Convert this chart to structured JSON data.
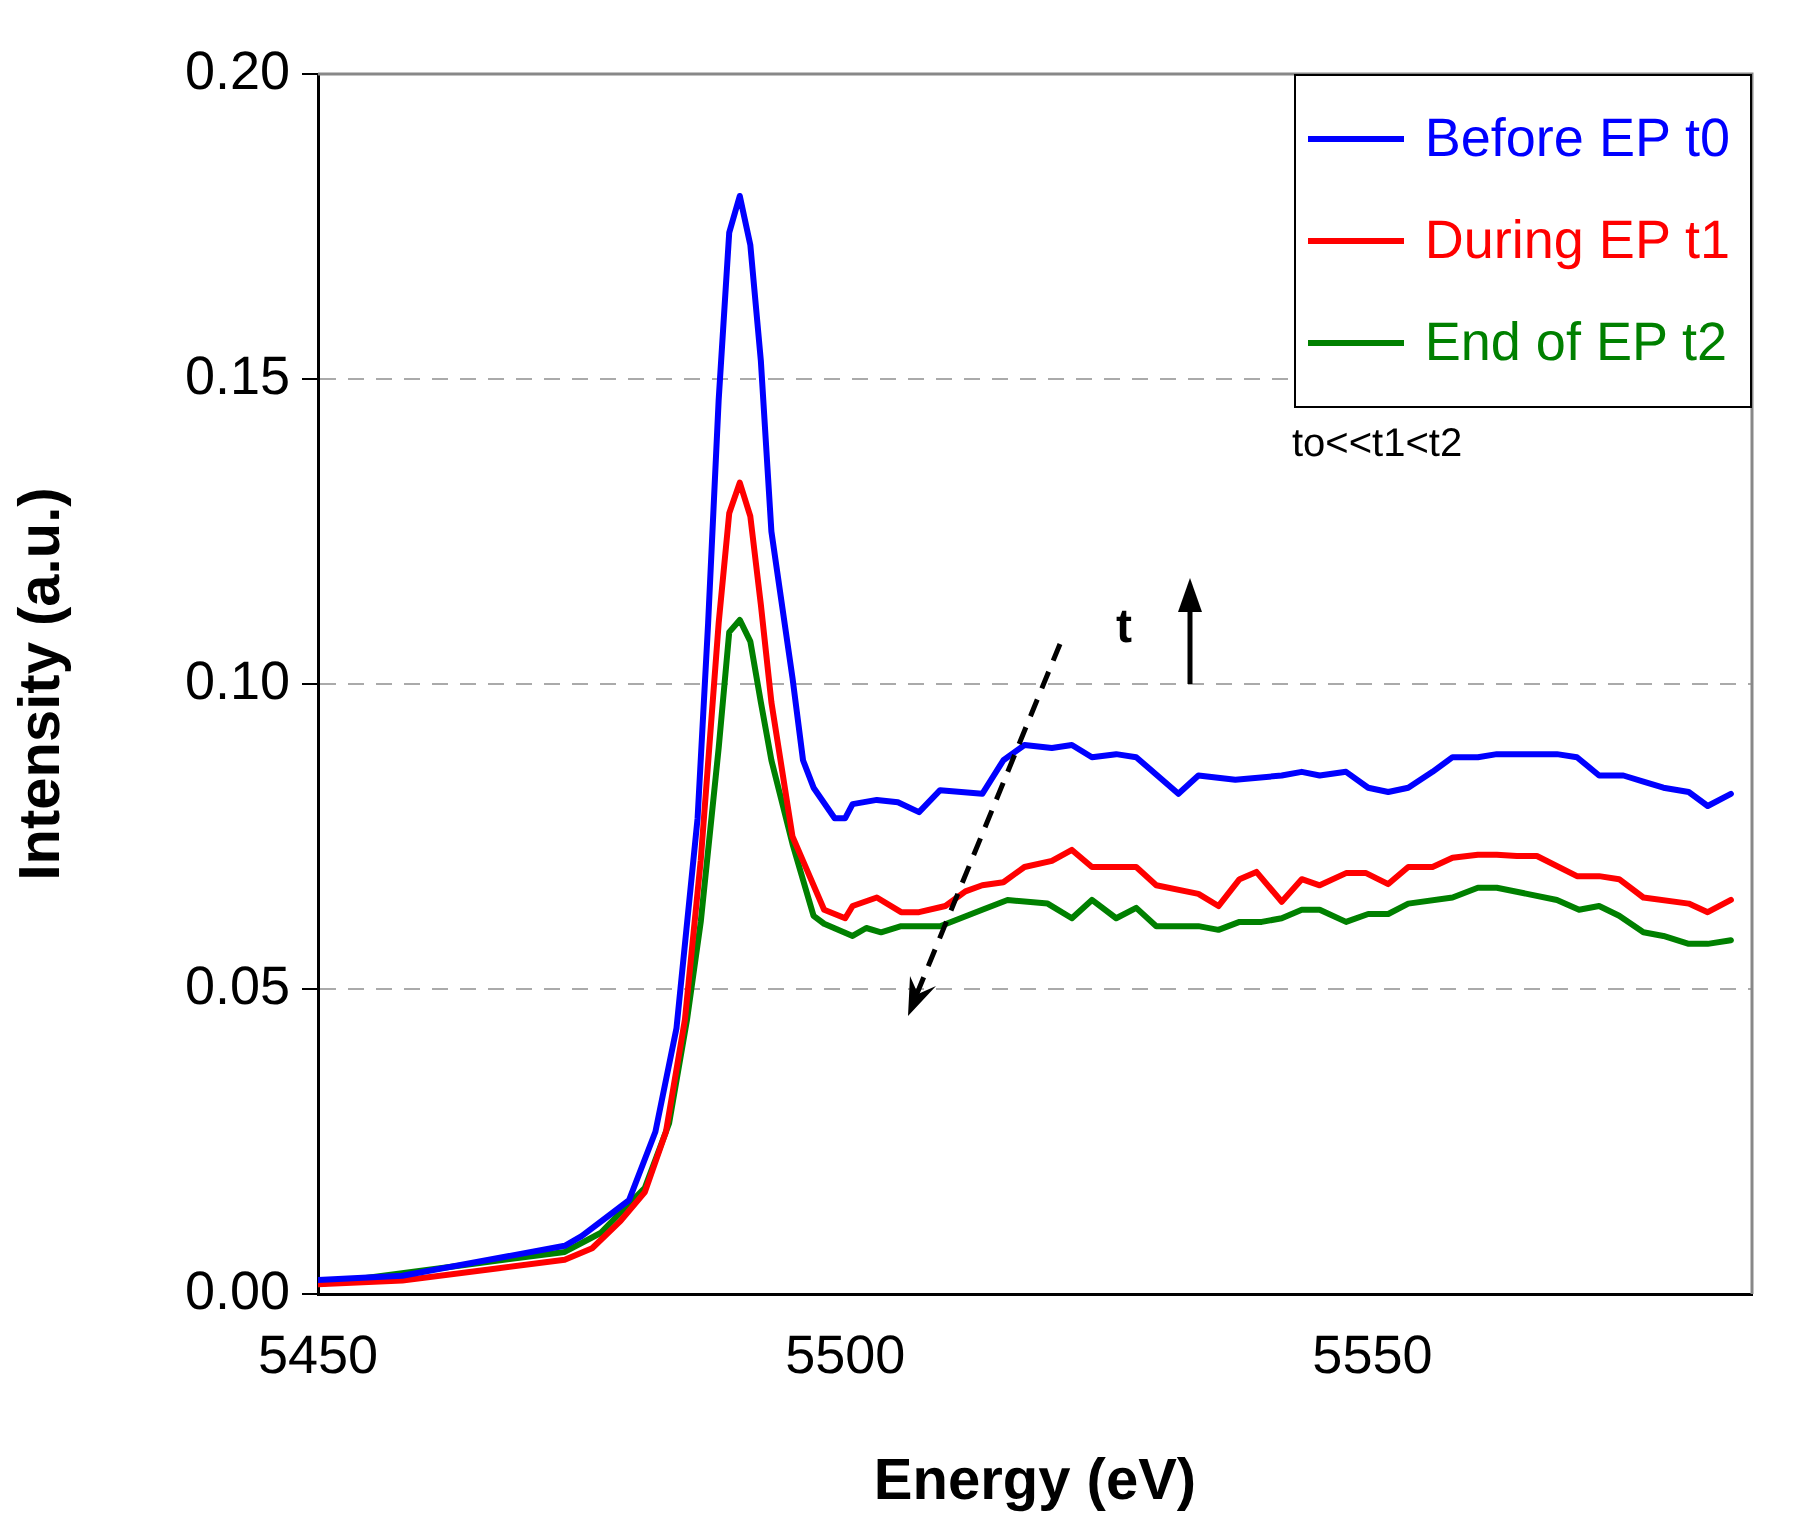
{
  "chart_data": {
    "type": "line",
    "xlabel": "Energy (eV)",
    "ylabel": "Intensity (a.u.)",
    "xlim": [
      5450,
      5586
    ],
    "xticks": [
      5450,
      5500,
      5550
    ],
    "ylim": [
      0,
      0.2
    ],
    "yticks": [
      {
        "value": 0,
        "label": "0.00"
      },
      {
        "value": 0.05,
        "label": "0.05"
      },
      {
        "value": 0.1,
        "label": "0.10"
      },
      {
        "value": 0.15,
        "label": "0.15"
      },
      {
        "value": 0.2,
        "label": "0.20"
      }
    ],
    "grid": "y",
    "legend": "top right",
    "marker": "none",
    "line_style": "solid",
    "annotations": [
      "t",
      "to<<t1<t2"
    ],
    "series": [
      {
        "name": "Before EP t0",
        "color": "#0000ff",
        "x": [
          5450,
          5458,
          5473.4,
          5475,
          5478,
          5479.5,
          5482,
          5484,
          5486,
          5487,
          5488,
          5489,
          5490,
          5491,
          5492,
          5493,
          5495,
          5496,
          5497,
          5499,
          5500,
          5500.7,
          5503,
          5505,
          5507,
          5509,
          5513,
          5515,
          5517,
          5519.6,
          5521.5,
          5523.4,
          5525.7,
          5527.6,
          5531.6,
          5533.5,
          5537,
          5541.4,
          5543.3,
          5545,
          5547.5,
          5549.6,
          5551.5,
          5553.4,
          5555.7,
          5557.6,
          5560,
          5561.8,
          5567.5,
          5569.4,
          5571.5,
          5573.8,
          5575.7,
          5577.6,
          5580,
          5581.8,
          5584
        ],
        "values": [
          0.0023,
          0.003,
          0.0079,
          0.0095,
          0.0134,
          0.0154,
          0.0266,
          0.0436,
          0.078,
          0.11,
          0.1466,
          0.174,
          0.18,
          0.172,
          0.153,
          0.125,
          0.101,
          0.0875,
          0.083,
          0.078,
          0.078,
          0.0803,
          0.081,
          0.0806,
          0.079,
          0.0826,
          0.082,
          0.0875,
          0.09,
          0.0895,
          0.09,
          0.088,
          0.0885,
          0.088,
          0.082,
          0.085,
          0.0843,
          0.085,
          0.0856,
          0.085,
          0.0856,
          0.083,
          0.0823,
          0.083,
          0.0856,
          0.088,
          0.088,
          0.0885,
          0.0885,
          0.088,
          0.085,
          0.085,
          0.084,
          0.083,
          0.0823,
          0.08,
          0.082
        ]
      },
      {
        "name": "During EP t1",
        "color": "#ff0000",
        "x": [
          5450,
          5458,
          5473.4,
          5476,
          5478.7,
          5481,
          5483,
          5484.8,
          5486.3,
          5488,
          5489,
          5490,
          5491,
          5492,
          5493,
          5495,
          5496,
          5498,
          5500,
          5500.7,
          5503,
          5505.3,
          5507,
          5509.5,
          5511.4,
          5513,
          5515,
          5517,
          5519.6,
          5521.5,
          5523.4,
          5527.6,
          5529.5,
          5533.5,
          5535.4,
          5537.4,
          5539,
          5541.4,
          5543.3,
          5545,
          5547.5,
          5549.4,
          5551.5,
          5553.4,
          5555.7,
          5557.6,
          5560,
          5561.8,
          5563.7,
          5565.6,
          5569.4,
          5571.5,
          5573.4,
          5575.7,
          5580,
          5581.8,
          5584
        ],
        "values": [
          0.0016,
          0.0022,
          0.0056,
          0.0075,
          0.012,
          0.0167,
          0.0266,
          0.045,
          0.0711,
          0.11,
          0.128,
          0.133,
          0.1275,
          0.113,
          0.097,
          0.075,
          0.071,
          0.063,
          0.0616,
          0.0636,
          0.065,
          0.0626,
          0.0626,
          0.0636,
          0.066,
          0.067,
          0.0675,
          0.07,
          0.071,
          0.0728,
          0.07,
          0.07,
          0.067,
          0.0656,
          0.0636,
          0.068,
          0.0692,
          0.0643,
          0.068,
          0.067,
          0.069,
          0.069,
          0.0672,
          0.07,
          0.07,
          0.0715,
          0.072,
          0.072,
          0.0718,
          0.0718,
          0.0685,
          0.0685,
          0.068,
          0.065,
          0.064,
          0.0626,
          0.0646
        ]
      },
      {
        "name": "End of EP t2",
        "color": "#008000",
        "x": [
          5450,
          5473.4,
          5476.8,
          5479.5,
          5481,
          5483.3,
          5485,
          5486.3,
          5488,
          5489,
          5490,
          5491,
          5492,
          5493,
          5495,
          5497,
          5498,
          5500.7,
          5502,
          5503.4,
          5505.3,
          5509,
          5513,
          5515.4,
          5519.2,
          5521.5,
          5523.4,
          5525.7,
          5527.6,
          5529.5,
          5533.5,
          5535.4,
          5537.4,
          5539.5,
          5541.4,
          5543.3,
          5545,
          5547.5,
          5549.6,
          5551.5,
          5553.4,
          5557.6,
          5560,
          5561.8,
          5567.5,
          5569.6,
          5571.5,
          5573.4,
          5575.7,
          5577.6,
          5580,
          5581.8,
          5584
        ],
        "values": [
          0.0016,
          0.0069,
          0.01,
          0.0148,
          0.0174,
          0.028,
          0.045,
          0.061,
          0.0895,
          0.1085,
          0.1105,
          0.107,
          0.097,
          0.0875,
          0.0738,
          0.062,
          0.0607,
          0.0587,
          0.06,
          0.0593,
          0.0603,
          0.0603,
          0.063,
          0.0646,
          0.064,
          0.0616,
          0.0646,
          0.0616,
          0.0633,
          0.0603,
          0.0603,
          0.0597,
          0.061,
          0.061,
          0.0616,
          0.063,
          0.063,
          0.061,
          0.0623,
          0.0623,
          0.064,
          0.065,
          0.0666,
          0.0666,
          0.0646,
          0.063,
          0.0636,
          0.062,
          0.0593,
          0.0587,
          0.0574,
          0.0574,
          0.058
        ]
      }
    ]
  }
}
